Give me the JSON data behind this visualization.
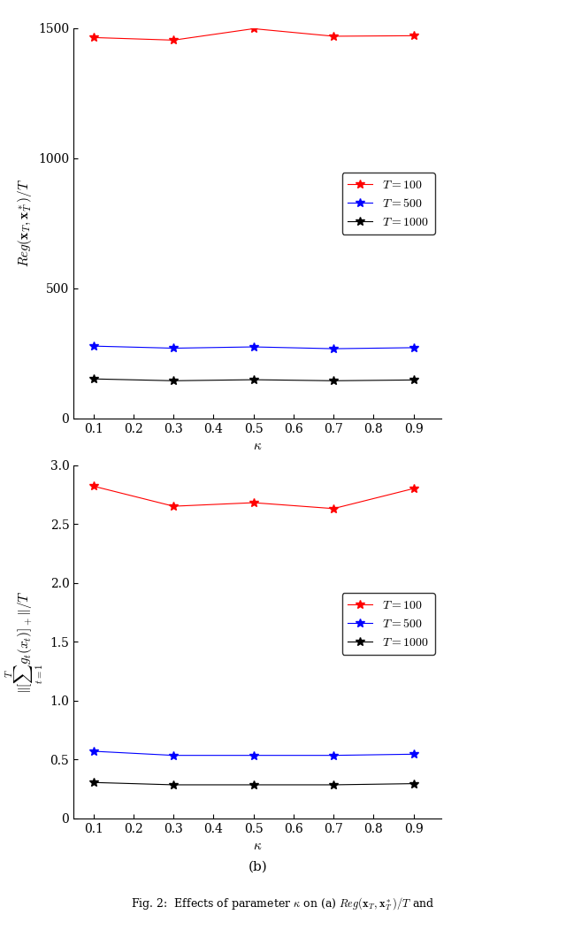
{
  "kappa": [
    0.1,
    0.3,
    0.5,
    0.7,
    0.9
  ],
  "reg_T100": [
    1463,
    1453,
    1497,
    1468,
    1470
  ],
  "reg_T500": [
    278,
    270,
    275,
    268,
    272
  ],
  "reg_T1000": [
    152,
    145,
    149,
    145,
    148
  ],
  "vio_T100": [
    2.82,
    2.65,
    2.68,
    2.63,
    2.8
  ],
  "vio_T500": [
    0.57,
    0.535,
    0.535,
    0.535,
    0.545
  ],
  "vio_T1000": [
    0.305,
    0.285,
    0.285,
    0.285,
    0.295
  ],
  "colors": {
    "T100": "#ff0000",
    "T500": "#0000ff",
    "T1000": "#000000"
  },
  "marker": "*",
  "linewidth": 0.8,
  "markersize": 7,
  "plot1_ylabel": "Reg($\\mathbf{x}_T, \\mathbf{x}_T^*)/T$",
  "plot1_ylim": [
    0,
    1500
  ],
  "plot1_yticks": [
    0,
    500,
    1000,
    1500
  ],
  "plot2_ylabel": "$\\|[\\sum_{t=1}^T g_t(x_t)]_+\\|/T$",
  "plot2_ylim": [
    0,
    3.0
  ],
  "plot2_yticks": [
    0,
    0.5,
    1.0,
    1.5,
    2.0,
    2.5,
    3.0
  ],
  "xlabel": "$\\kappa$",
  "xlim": [
    0.05,
    0.97
  ],
  "xticks": [
    0.1,
    0.2,
    0.3,
    0.4,
    0.5,
    0.6,
    0.7,
    0.8,
    0.9
  ],
  "xticklabels": [
    "0.1",
    "0.2",
    "0.3",
    "0.4",
    "0.5",
    "0.6",
    "0.7",
    "0.8",
    "0.9"
  ],
  "legend_labels": [
    "$T = 100$",
    "$T = 500$",
    "$T = 1000$"
  ],
  "label_b": "(b)",
  "fig_caption": "Fig. 2:  Effects of parameter $\\kappa$ on (a) $Reg(\\mathbf{x}_T, \\mathbf{x}_T^*)/T$ and",
  "font_size": 11,
  "tick_size": 10,
  "legend_fontsize": 10,
  "label_fontsize": 11,
  "caption_fontsize": 9
}
